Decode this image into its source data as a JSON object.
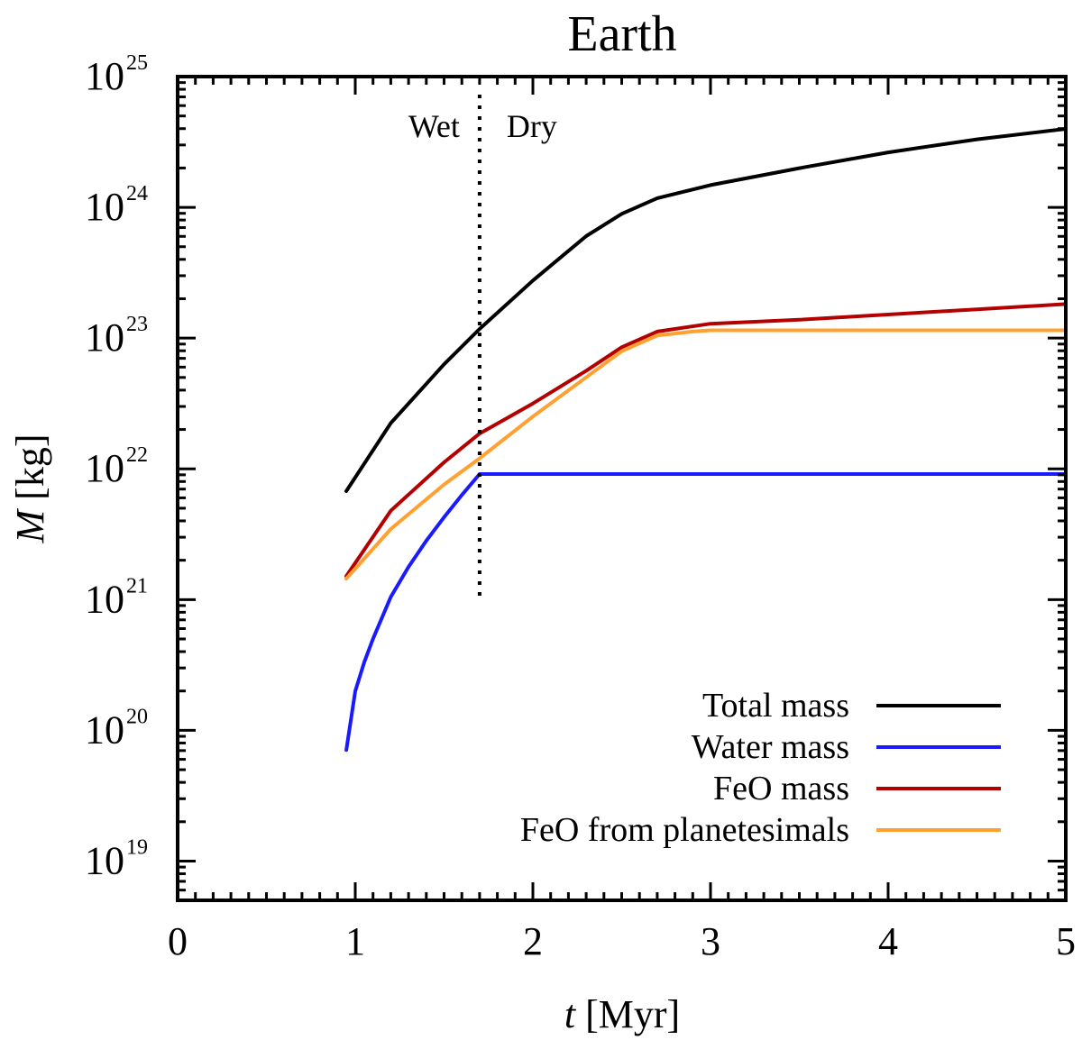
{
  "chart_data": {
    "type": "line",
    "title": "Earth",
    "xlabel": {
      "var": "t",
      "unit": "[Myr]"
    },
    "ylabel": {
      "var": "M",
      "unit": "[kg]"
    },
    "xlim": [
      0,
      5
    ],
    "ylog_exponent_range": [
      18.7,
      25
    ],
    "x_ticks": [
      "0",
      "1",
      "2",
      "3",
      "4",
      "5"
    ],
    "y_ticks": [
      {
        "base": "10",
        "exp": "19"
      },
      {
        "base": "10",
        "exp": "20"
      },
      {
        "base": "10",
        "exp": "21"
      },
      {
        "base": "10",
        "exp": "22"
      },
      {
        "base": "10",
        "exp": "23"
      },
      {
        "base": "10",
        "exp": "24"
      },
      {
        "base": "10",
        "exp": "25"
      }
    ],
    "annotations": {
      "divider_x": 1.7,
      "divider_log10_range": [
        21.0,
        25.0
      ],
      "left_label": "Wet",
      "right_label": "Dry"
    },
    "legend_position": "bottom-right",
    "series": [
      {
        "name": "Total mass",
        "color": "#000000",
        "x": [
          0.95,
          1.2,
          1.5,
          1.7,
          2.0,
          2.3,
          2.5,
          2.7,
          3.0,
          3.5,
          4.0,
          4.5,
          5.0
        ],
        "log10_y": [
          21.83,
          22.35,
          22.8,
          23.07,
          23.44,
          23.78,
          23.95,
          24.07,
          24.17,
          24.3,
          24.42,
          24.52,
          24.6
        ]
      },
      {
        "name": "Water mass",
        "color": "#1a1aff",
        "x": [
          0.95,
          1.0,
          1.05,
          1.1,
          1.2,
          1.3,
          1.4,
          1.5,
          1.6,
          1.7,
          2.0,
          3.0,
          4.0,
          5.0
        ],
        "log10_y": [
          19.85,
          20.3,
          20.52,
          20.7,
          21.02,
          21.25,
          21.45,
          21.63,
          21.8,
          21.96,
          21.96,
          21.96,
          21.96,
          21.96
        ]
      },
      {
        "name": "FeO mass",
        "color": "#b30000",
        "x": [
          0.95,
          1.2,
          1.5,
          1.7,
          2.0,
          2.3,
          2.5,
          2.7,
          3.0,
          3.5,
          4.0,
          4.5,
          5.0
        ],
        "log10_y": [
          21.18,
          21.68,
          22.05,
          22.27,
          22.5,
          22.75,
          22.93,
          23.05,
          23.11,
          23.14,
          23.18,
          23.22,
          23.26
        ]
      },
      {
        "name": "FeO from planetesimals",
        "color": "#ffa030",
        "x": [
          0.95,
          1.2,
          1.5,
          1.7,
          2.0,
          2.3,
          2.5,
          2.7,
          2.9,
          3.0,
          3.5,
          4.0,
          4.5,
          5.0
        ],
        "log10_y": [
          21.16,
          21.54,
          21.88,
          22.08,
          22.4,
          22.7,
          22.9,
          23.02,
          23.05,
          23.06,
          23.06,
          23.06,
          23.06,
          23.06
        ]
      }
    ]
  }
}
